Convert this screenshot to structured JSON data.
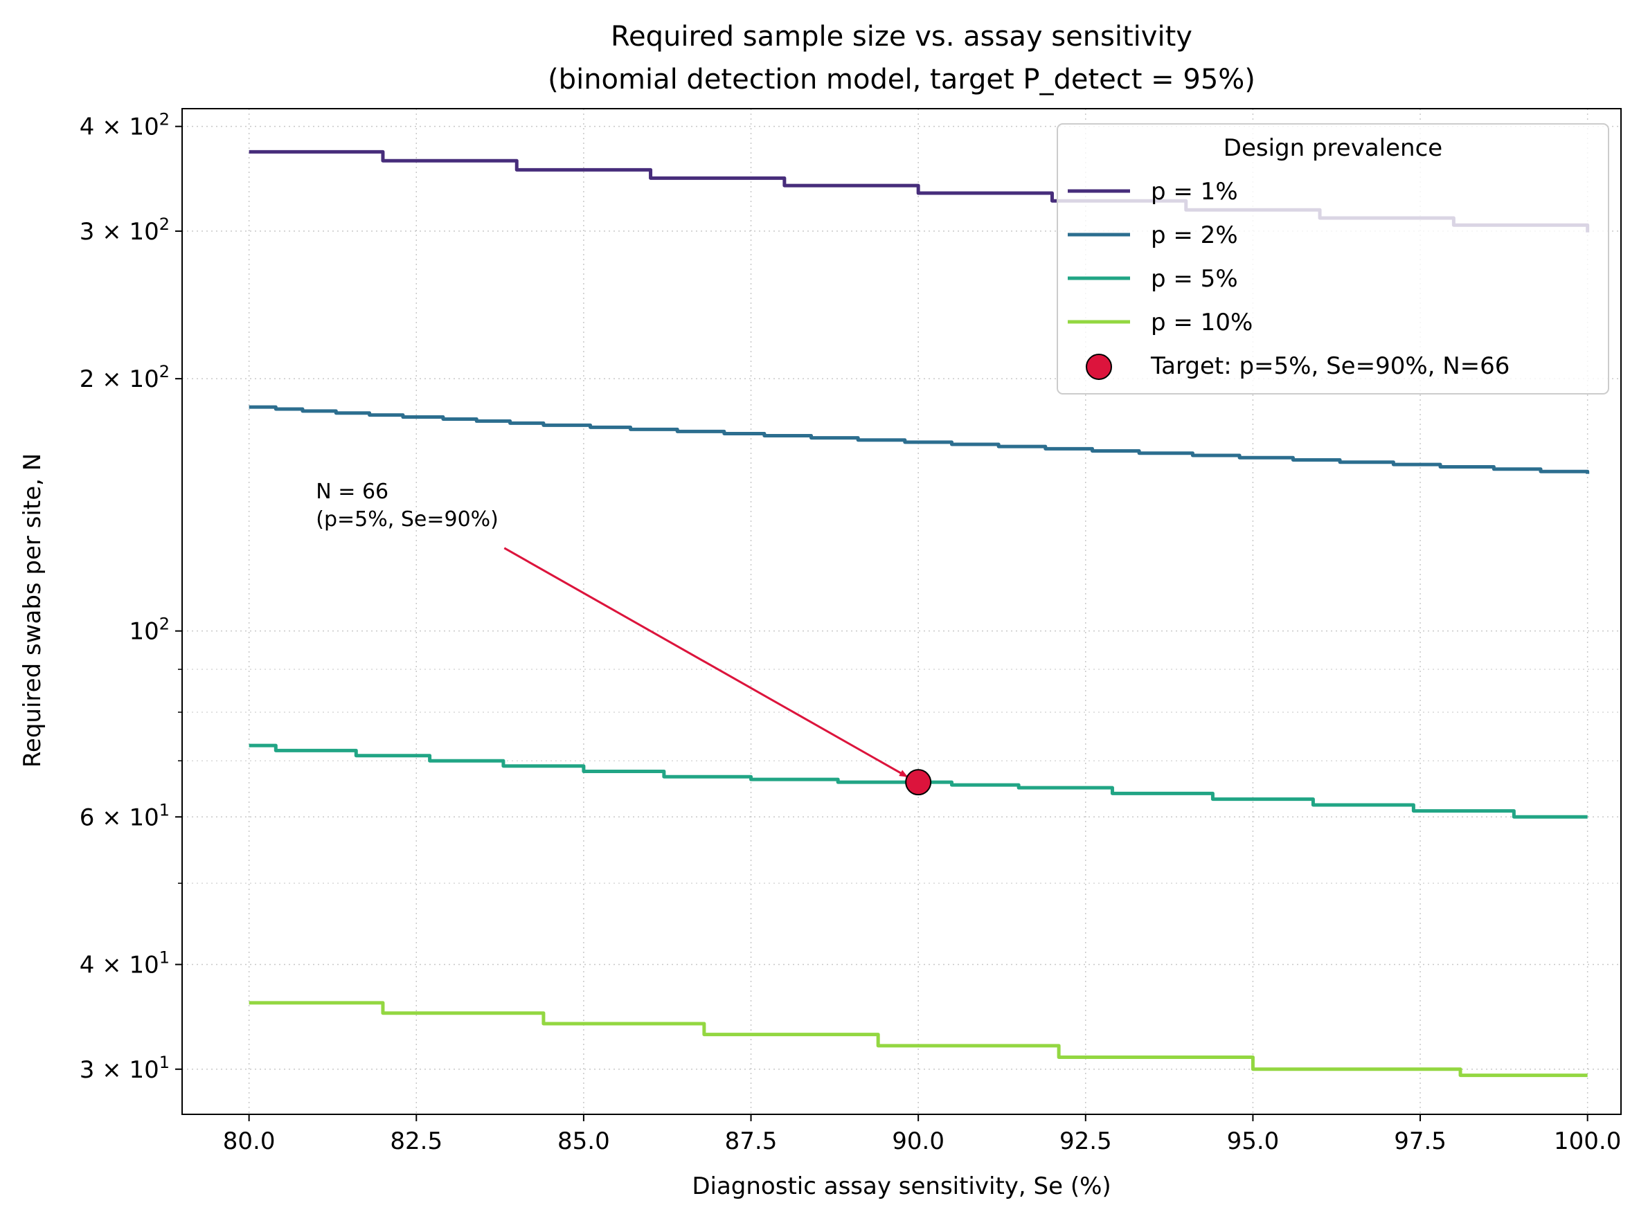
{
  "chart_data": {
    "type": "line",
    "title": "Required sample size vs. assay sensitivity",
    "subtitle": "(binomial detection model, target P_detect = 95%)",
    "xlabel": "Diagnostic assay sensitivity, Se (%)",
    "ylabel": "Required swabs per site, N",
    "xlim": [
      79,
      100.5
    ],
    "ylim": [
      26.5,
      420
    ],
    "yscale": "log",
    "grid": true,
    "x_ticks": [
      80,
      82.5,
      85,
      87.5,
      90,
      92.5,
      95,
      97.5,
      100
    ],
    "x_tick_labels": [
      "80.0",
      "82.5",
      "85.0",
      "87.5",
      "90.0",
      "92.5",
      "95.0",
      "97.5",
      "100.0"
    ],
    "y_ticks": [
      {
        "value": 30,
        "mantissa": "3",
        "exponent": "1"
      },
      {
        "value": 40,
        "mantissa": "4",
        "exponent": "1"
      },
      {
        "value": 60,
        "mantissa": "6",
        "exponent": "1"
      },
      {
        "value": 100,
        "mantissa": "",
        "exponent": "2"
      },
      {
        "value": 200,
        "mantissa": "2",
        "exponent": "2"
      },
      {
        "value": 300,
        "mantissa": "3",
        "exponent": "2"
      },
      {
        "value": 400,
        "mantissa": "4",
        "exponent": "2"
      }
    ],
    "legend": {
      "title": "Design prevalence",
      "position": "top-right",
      "target_label": "Target: p=5%, Se=90%, N=66"
    },
    "series": [
      {
        "name": "p = 1%",
        "color": "#472d7b",
        "steps": [
          [
            80,
            373
          ],
          [
            82,
            364
          ],
          [
            84,
            355
          ],
          [
            86,
            347
          ],
          [
            88,
            340
          ],
          [
            90,
            333
          ],
          [
            92,
            326
          ],
          [
            94,
            318
          ],
          [
            96,
            311
          ],
          [
            98,
            305
          ],
          [
            100,
            299
          ]
        ]
      },
      {
        "name": "p = 2%",
        "color": "#2c6e8f",
        "steps": [
          [
            80,
            185
          ],
          [
            80.4,
            184
          ],
          [
            80.8,
            183
          ],
          [
            81.3,
            182
          ],
          [
            81.8,
            181
          ],
          [
            82.3,
            180
          ],
          [
            82.9,
            179
          ],
          [
            83.4,
            178
          ],
          [
            83.9,
            177
          ],
          [
            84.4,
            176
          ],
          [
            85.1,
            175
          ],
          [
            85.7,
            174
          ],
          [
            86.4,
            173
          ],
          [
            87.1,
            172
          ],
          [
            87.7,
            171
          ],
          [
            88.4,
            170
          ],
          [
            89.1,
            169
          ],
          [
            89.8,
            168
          ],
          [
            90.5,
            167
          ],
          [
            91.2,
            166
          ],
          [
            91.9,
            165
          ],
          [
            92.6,
            164
          ],
          [
            93.3,
            163
          ],
          [
            94.1,
            162
          ],
          [
            94.8,
            161
          ],
          [
            95.6,
            160
          ],
          [
            96.3,
            159
          ],
          [
            97.1,
            158
          ],
          [
            97.8,
            157
          ],
          [
            98.6,
            156
          ],
          [
            99.3,
            155
          ],
          [
            100,
            154
          ]
        ]
      },
      {
        "name": "p = 5%",
        "color": "#21a585",
        "steps": [
          [
            80,
            73
          ],
          [
            80.4,
            72
          ],
          [
            81.6,
            71
          ],
          [
            82.7,
            70
          ],
          [
            83.8,
            69
          ],
          [
            85,
            68
          ],
          [
            86.2,
            67
          ],
          [
            87.5,
            66.5
          ],
          [
            88.8,
            66
          ],
          [
            90.5,
            65.5
          ],
          [
            91.5,
            65
          ],
          [
            92.9,
            64
          ],
          [
            94.4,
            63
          ],
          [
            95.9,
            62
          ],
          [
            97.4,
            61
          ],
          [
            98.9,
            60
          ],
          [
            100,
            60
          ]
        ]
      },
      {
        "name": "p = 10%",
        "color": "#93d741",
        "steps": [
          [
            80,
            36
          ],
          [
            82,
            35
          ],
          [
            84.4,
            34
          ],
          [
            86.8,
            33
          ],
          [
            89.4,
            32
          ],
          [
            92.1,
            31
          ],
          [
            95,
            30
          ],
          [
            98.1,
            29.5
          ],
          [
            100,
            29.5
          ]
        ]
      }
    ],
    "target_point": {
      "x": 90,
      "y": 66,
      "color": "#dc143c"
    },
    "annotation": {
      "line1": "N = 66",
      "line2": "(p=5%, Se=90%)",
      "text_x": 81,
      "text_y": 135,
      "arrow_color": "#dc143c"
    }
  }
}
